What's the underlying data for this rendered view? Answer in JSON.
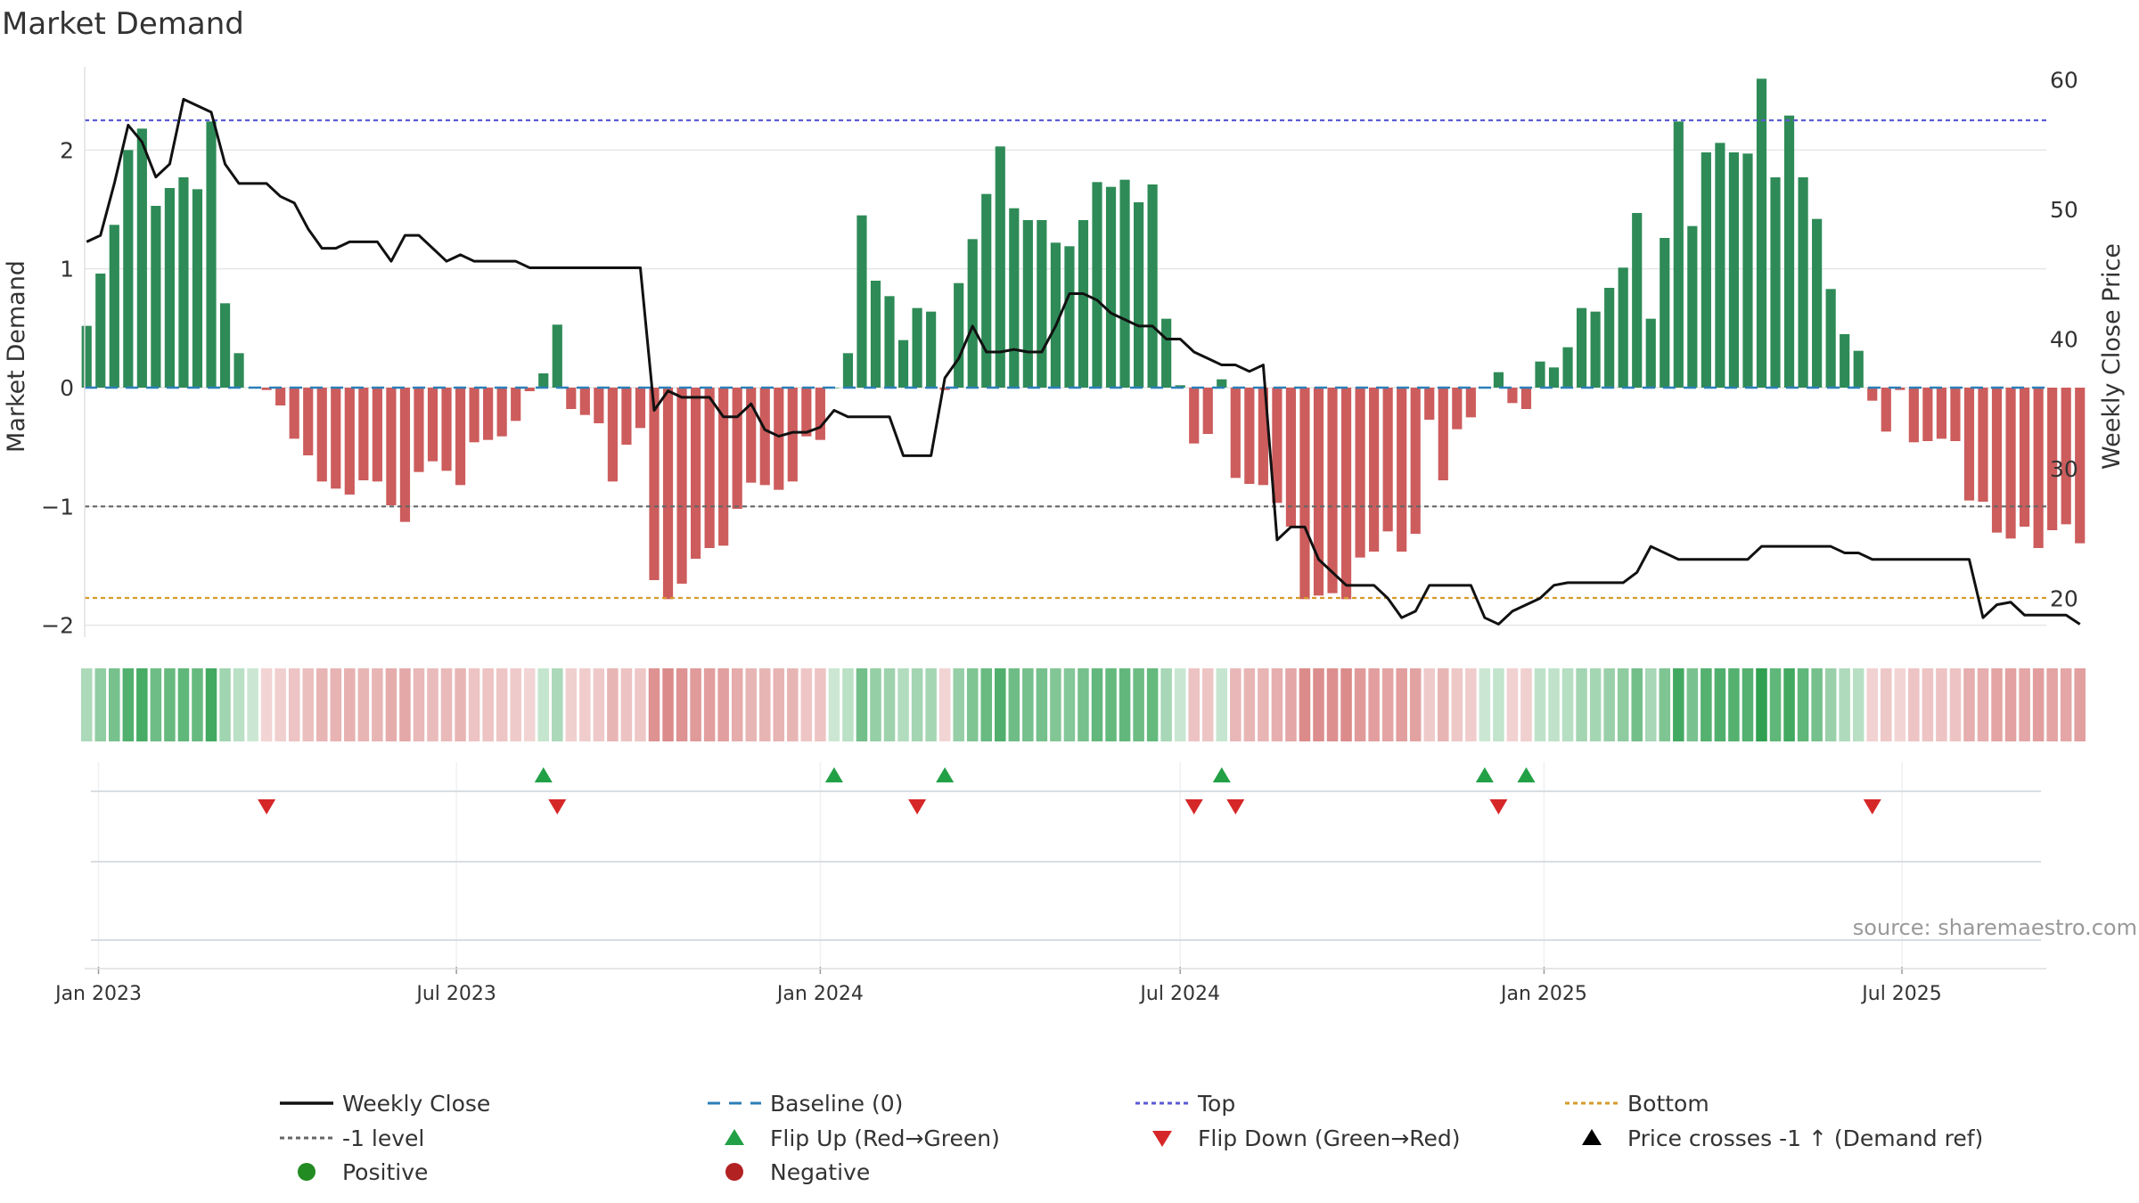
{
  "chart_data": {
    "type": "bar",
    "title": "Market Demand",
    "ylabel": "Market Demand",
    "y2label": "Weekly Close Price",
    "source": "source: sharemaestro.com",
    "ylim": [
      -2.1,
      2.7
    ],
    "y2lim": [
      17,
      61
    ],
    "y_ticks": [
      -2,
      -1,
      0,
      1,
      2
    ],
    "y_tick_labels": [
      "−2",
      "−1",
      "0",
      "1",
      "2"
    ],
    "y2_ticks": [
      20,
      30,
      40,
      50,
      60
    ],
    "y2_tick_labels": [
      "20",
      "30",
      "40",
      "50",
      "60"
    ],
    "x_range": [
      "2022-12-25",
      "2025-09-12"
    ],
    "x_ticks": [
      "2023-01-01",
      "2023-07-01",
      "2024-01-01",
      "2024-07-01",
      "2025-01-01",
      "2025-07-01"
    ],
    "x_tick_labels": [
      "Jan 2023",
      "Jul 2023",
      "Jan 2024",
      "Jul 2024",
      "Jan 2025",
      "Jul 2025"
    ],
    "grid": true,
    "start_date": "2022-12-26",
    "week_step_days": 7,
    "demand": [
      0.52,
      0.96,
      1.37,
      2.0,
      2.18,
      1.53,
      1.68,
      1.77,
      1.67,
      2.24,
      0.71,
      0.29,
      0.0,
      -0.02,
      -0.15,
      -0.43,
      -0.57,
      -0.79,
      -0.85,
      -0.9,
      -0.78,
      -0.79,
      -0.99,
      -1.13,
      -0.71,
      -0.62,
      -0.7,
      -0.82,
      -0.46,
      -0.44,
      -0.41,
      -0.28,
      -0.03,
      0.12,
      0.53,
      -0.18,
      -0.23,
      -0.3,
      -0.79,
      -0.48,
      -0.34,
      -1.62,
      -1.78,
      -1.65,
      -1.44,
      -1.35,
      -1.33,
      -1.02,
      -0.8,
      -0.82,
      -0.86,
      -0.79,
      -0.41,
      -0.44,
      0.0,
      0.29,
      1.45,
      0.9,
      0.77,
      0.4,
      0.67,
      0.64,
      -0.02,
      0.88,
      1.25,
      1.63,
      2.03,
      1.51,
      1.41,
      1.41,
      1.22,
      1.19,
      1.41,
      1.73,
      1.69,
      1.75,
      1.56,
      1.71,
      0.58,
      0.02,
      -0.47,
      -0.39,
      0.07,
      -0.76,
      -0.81,
      -0.82,
      -0.97,
      -1.17,
      -1.78,
      -1.75,
      -1.73,
      -1.78,
      -1.43,
      -1.38,
      -1.21,
      -1.38,
      -1.23,
      -0.27,
      -0.78,
      -0.35,
      -0.25,
      0.0,
      0.13,
      -0.13,
      -0.18,
      0.22,
      0.17,
      0.34,
      0.67,
      0.64,
      0.84,
      1.01,
      1.47,
      0.58,
      1.26,
      2.24,
      1.36,
      1.98,
      2.06,
      1.98,
      1.97,
      2.6,
      1.77,
      2.29,
      1.77,
      1.42,
      0.83,
      0.45,
      0.31,
      -0.11,
      -0.37,
      -0.02,
      -0.46,
      -0.45,
      -0.43,
      -0.45,
      -0.95,
      -0.96,
      -1.22,
      -1.27,
      -1.17,
      -1.35,
      -1.2,
      -1.15,
      -1.31
    ],
    "close": [
      47.5,
      48,
      52,
      56.5,
      55.2,
      52.5,
      53.5,
      58.5,
      58,
      57.5,
      53.5,
      52,
      52,
      52,
      51,
      50.5,
      48.5,
      47,
      47,
      47.5,
      47.5,
      47.5,
      46,
      48,
      48,
      47,
      46,
      46.5,
      46,
      46,
      46,
      46,
      45.5,
      45.5,
      45.5,
      45.5,
      45.5,
      45.5,
      45.5,
      45.5,
      45.5,
      34.5,
      36,
      35.5,
      35.5,
      35.5,
      34,
      34,
      35,
      33,
      32.5,
      32.8,
      32.8,
      33.2,
      34.5,
      34,
      34,
      34,
      34,
      31,
      31,
      31,
      37,
      38.5,
      41,
      39,
      39,
      39.2,
      39,
      39,
      41,
      43.5,
      43.5,
      43,
      42,
      41.5,
      41,
      41,
      40,
      40,
      39,
      38.5,
      38,
      38,
      37.5,
      38,
      24.5,
      25.5,
      25.5,
      23,
      22,
      21,
      21,
      21,
      20,
      18.5,
      19,
      21,
      21,
      21,
      21,
      18.5,
      18,
      19,
      19.5,
      20,
      21,
      21.2,
      21.2,
      21.2,
      21.2,
      21.2,
      22,
      24,
      23.5,
      23,
      23,
      23,
      23,
      23,
      23,
      24,
      24,
      24,
      24,
      24,
      24,
      23.5,
      23.5,
      23,
      23,
      23,
      23,
      23,
      23,
      23,
      23,
      18.5,
      19.5,
      19.7,
      18.7,
      18.7,
      18.7,
      18.7,
      18
    ],
    "top_level": 2.25,
    "minus_one_level": -1.0,
    "bottom_level": -1.77,
    "flip_up_weeks": [
      33,
      54,
      62,
      82,
      101,
      104
    ],
    "flip_down_weeks": [
      13,
      34,
      60,
      80,
      83,
      102,
      129
    ],
    "legend": [
      {
        "label": "Weekly Close",
        "kind": "line",
        "color": "#111111"
      },
      {
        "label": "Baseline (0)",
        "kind": "dash",
        "color": "#2c7fb8"
      },
      {
        "label": "Top",
        "kind": "dot",
        "color": "#5b5bd6"
      },
      {
        "label": "Bottom",
        "kind": "dot",
        "color": "#d69b2a"
      },
      {
        "label": "-1 level",
        "kind": "dot",
        "color": "#666666"
      },
      {
        "label": "Flip Up (Red→Green)",
        "kind": "tri-up",
        "color": "#22a046"
      },
      {
        "label": "Flip Down (Green→Red)",
        "kind": "tri-down",
        "color": "#d62728"
      },
      {
        "label": "Price crosses -1 ↑ (Demand ref)",
        "kind": "tri-up",
        "color": "#000000"
      },
      {
        "label": "Positive",
        "kind": "circle",
        "color": "#228B22"
      },
      {
        "label": "Negative",
        "kind": "circle",
        "color": "#b22222"
      }
    ],
    "legend_position": "bottom"
  },
  "colors": {
    "positive_bar": "#2e8b57",
    "negative_bar": "#cd5c5c",
    "price_line": "#111111",
    "baseline": "#2c7fb8",
    "top_line": "#5b5bd6",
    "bottom_line": "#d69b2a",
    "minus_one_line": "#666666",
    "flip_up": "#22a046",
    "flip_down": "#d62728",
    "grid": "#e6e6e6"
  }
}
